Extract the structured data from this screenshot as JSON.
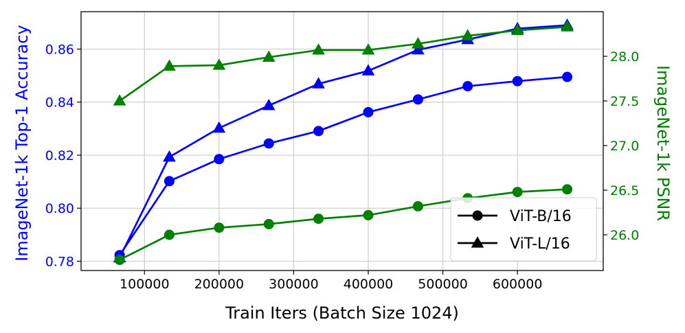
{
  "chart_data": {
    "type": "line",
    "xlabel": "Train Iters (Batch Size 1024)",
    "x_ticks": [
      100000,
      200000,
      300000,
      400000,
      500000,
      600000
    ],
    "xlim": [
      15000,
      715000
    ],
    "x": [
      66700,
      133300,
      200000,
      266700,
      333300,
      400000,
      466700,
      533300,
      600000,
      666700
    ],
    "y_left": {
      "label": "ImageNet-1k Top-1 Accuracy",
      "color": "#0000ff",
      "ticks": [
        "0.78",
        "0.80",
        "0.82",
        "0.84",
        "0.86"
      ],
      "tick_values": [
        0.78,
        0.8,
        0.82,
        0.84,
        0.86
      ],
      "lim": [
        0.7765,
        0.8741
      ]
    },
    "y_right": {
      "label": "ImageNet-1k PSNR",
      "color": "#008000",
      "ticks": [
        "26.0",
        "26.5",
        "27.0",
        "27.5",
        "28.0"
      ],
      "tick_values": [
        26.0,
        26.5,
        27.0,
        27.5,
        28.0
      ],
      "lim": [
        25.6,
        28.5
      ]
    },
    "grid": true,
    "legend_position": "bottom-right",
    "legend": [
      {
        "label": "ViT-B/16",
        "marker": "circle"
      },
      {
        "label": "ViT-L/16",
        "marker": "triangle"
      }
    ],
    "series": [
      {
        "model": "ViT-B/16",
        "metric": "Top-1 Accuracy",
        "axis": "left",
        "color": "#0000ff",
        "marker": "circle",
        "values": [
          0.7823,
          0.8102,
          0.8185,
          0.8244,
          0.8291,
          0.8362,
          0.841,
          0.846,
          0.8479,
          0.8495
        ]
      },
      {
        "model": "ViT-L/16",
        "metric": "Top-1 Accuracy",
        "axis": "left",
        "color": "#0000ff",
        "marker": "triangle",
        "values": [
          0.7813,
          0.8193,
          0.8302,
          0.8387,
          0.8469,
          0.8518,
          0.8597,
          0.8636,
          0.8677,
          0.869
        ]
      },
      {
        "model": "ViT-B/16",
        "metric": "PSNR",
        "axis": "right",
        "color": "#008000",
        "marker": "circle",
        "values": [
          25.72,
          26.0,
          26.08,
          26.12,
          26.18,
          26.22,
          26.32,
          26.41,
          26.48,
          26.51
        ]
      },
      {
        "model": "ViT-L/16",
        "metric": "PSNR",
        "axis": "right",
        "color": "#008000",
        "marker": "triangle",
        "values": [
          27.5,
          27.89,
          27.9,
          27.99,
          28.07,
          28.07,
          28.14,
          28.23,
          28.29,
          28.33
        ]
      }
    ]
  }
}
